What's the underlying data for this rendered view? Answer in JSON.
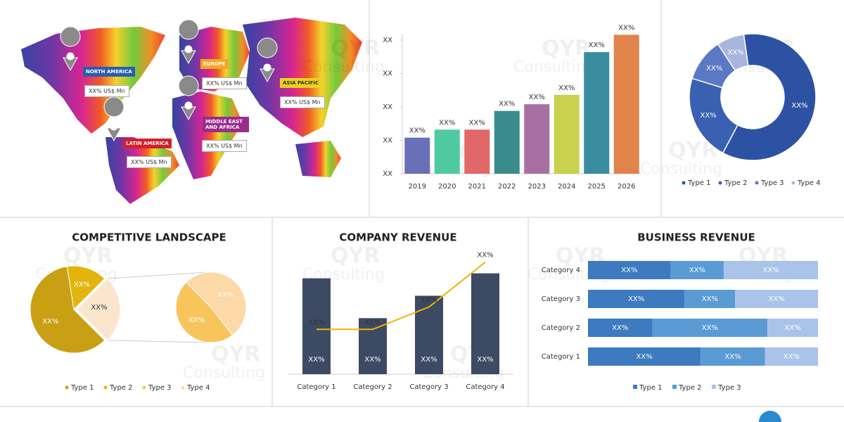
{
  "watermark": {
    "logo": "QYR",
    "text": "Consulting"
  },
  "map": {
    "regions": [
      {
        "name": "NORTH AMERICA",
        "value": "XX% US$ Mn",
        "color": "#2a5db0"
      },
      {
        "name": "EUROPE",
        "value": "XX% US$ Mn",
        "color": "#f5a623"
      },
      {
        "name": "ASIA PACIFIC",
        "value": "XX% US$ Mn",
        "color": "#ecd21e"
      },
      {
        "name": "MIDDLE EAST AND AFRICA",
        "value": "XX% US$ Mn",
        "color": "#9b2c8c"
      },
      {
        "name": "LATIN AMERICA",
        "value": "XX% US$ Mn",
        "color": "#d3202a"
      }
    ]
  },
  "chart_data": [
    {
      "type": "bar",
      "categories": [
        "2019",
        "2020",
        "2021",
        "2022",
        "2023",
        "2024",
        "2025",
        "2026"
      ],
      "values": [
        27,
        33,
        33,
        47,
        52,
        59,
        91,
        104
      ],
      "value_labels": [
        "XX%",
        "XX%",
        "XX%",
        "XX%",
        "XX%",
        "XX%",
        "XX%",
        "XX%"
      ],
      "colors": [
        "#6a70b8",
        "#4fcaa0",
        "#e06868",
        "#3a8c8c",
        "#a870a2",
        "#c8d24c",
        "#3a8d9e",
        "#e0844c"
      ],
      "ylim": [
        0,
        110
      ],
      "yticks": [
        {
          "value": 0,
          "label": "XX"
        },
        {
          "value": 25,
          "label": "XX"
        },
        {
          "value": 50,
          "label": "XX"
        },
        {
          "value": 75,
          "label": "XX"
        },
        {
          "value": 100,
          "label": "XX"
        }
      ]
    },
    {
      "type": "donut",
      "categories": [
        "Type 1",
        "Type 2",
        "Type 3",
        "Type 4"
      ],
      "values": [
        60,
        22,
        11,
        7
      ],
      "value_labels": [
        "XX%",
        "XX%",
        "XX%",
        "XX%"
      ],
      "colors": [
        "#2d52a3",
        "#3a60b2",
        "#5a78c4",
        "#a8b6de"
      ],
      "legend": "bottom"
    },
    {
      "type": "bar-of-pie",
      "title": "COMPETITIVE LANDSCAPE",
      "categories": [
        "Type 1",
        "Type 2",
        "Type 3",
        "Type 4"
      ],
      "values": [
        60,
        15,
        12,
        13
      ],
      "value_labels": [
        "XX%",
        "XX%",
        "XX%",
        "XX%"
      ],
      "group_label": "XX%",
      "colors": [
        "#c9a014",
        "#e3b40e",
        "#f8c45c",
        "#fcd9a6"
      ],
      "group_color": "#fbe6cd",
      "legend": "bottom"
    },
    {
      "type": "combo",
      "title": "COMPANY REVENUE",
      "categories": [
        "Category 1",
        "Category 2",
        "Category 3",
        "Category 4"
      ],
      "ylim": [
        0,
        100
      ],
      "series": [
        {
          "type": "bar",
          "color": "#3d4a63",
          "values": [
            77,
            45,
            63,
            81
          ],
          "value_labels": [
            "XX%",
            "XX%",
            "XX%",
            "XX%"
          ]
        },
        {
          "type": "line",
          "color": "#f0b400",
          "values": [
            36,
            36,
            54,
            90
          ],
          "value_labels": [
            "XX%",
            "XX%",
            "XX%",
            "XX%"
          ]
        }
      ]
    },
    {
      "type": "stacked-bar-horizontal",
      "title": "BUSINESS REVENUE",
      "categories": [
        "Category 1",
        "Category 2",
        "Category 3",
        "Category 4"
      ],
      "xlim": [
        0,
        100
      ],
      "legend": "bottom",
      "series": [
        {
          "name": "Type 1",
          "color": "#3d7ac0",
          "values": [
            49,
            28,
            42,
            36
          ],
          "value_labels": [
            "XX%",
            "XX%",
            "XX%",
            "XX%"
          ]
        },
        {
          "name": "Type 2",
          "color": "#5b9bd5",
          "values": [
            28,
            50,
            22,
            23
          ],
          "value_labels": [
            "XX%",
            "XX%",
            "XX%",
            "XX%"
          ]
        },
        {
          "name": "Type 3",
          "color": "#a9c4e8",
          "values": [
            23,
            22,
            36,
            41
          ],
          "value_labels": [
            "XX%",
            "XX%",
            "XX%",
            "XX%"
          ]
        }
      ]
    }
  ]
}
